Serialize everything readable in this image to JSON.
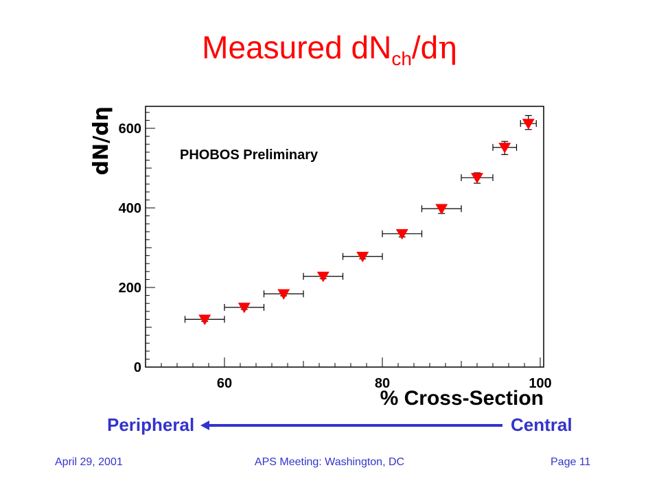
{
  "slide": {
    "title_main": "Measured dN",
    "title_sub": "ch",
    "title_tail": "/d",
    "title_greek": "η",
    "footer_date": "April 29, 2001",
    "footer_meeting": "APS Meeting: Washington, DC",
    "footer_page": "Page 11",
    "direction_left": "Peripheral",
    "direction_right": "Central",
    "colors": {
      "title": "#ff0000",
      "accent": "#3333cc",
      "marker": "#ff0000"
    }
  },
  "chart_data": {
    "type": "scatter",
    "annotation": "PHOBOS Preliminary",
    "xlabel": "% Cross-Section",
    "ylabel": "dN/dη",
    "xlim": [
      50,
      101
    ],
    "ylim": [
      0,
      650
    ],
    "xticks": [
      60,
      80,
      100
    ],
    "yticks": [
      0,
      200,
      400,
      600
    ],
    "grid": false,
    "marker": "down-triangle",
    "series": [
      {
        "points": [
          {
            "x": 57.5,
            "y": 120,
            "x_err": 2.5,
            "y_err_low": 5,
            "y_err_high": 5
          },
          {
            "x": 62.5,
            "y": 150,
            "x_err": 2.5,
            "y_err_low": 5,
            "y_err_high": 5
          },
          {
            "x": 67.5,
            "y": 184,
            "x_err": 2.5,
            "y_err_low": 5,
            "y_err_high": 5
          },
          {
            "x": 72.5,
            "y": 228,
            "x_err": 2.5,
            "y_err_low": 6,
            "y_err_high": 6
          },
          {
            "x": 77.5,
            "y": 278,
            "x_err": 2.5,
            "y_err_low": 6,
            "y_err_high": 6
          },
          {
            "x": 82.5,
            "y": 335,
            "x_err": 2.5,
            "y_err_low": 8,
            "y_err_high": 8
          },
          {
            "x": 87.5,
            "y": 398,
            "x_err": 2.5,
            "y_err_low": 12,
            "y_err_high": 8
          },
          {
            "x": 92.0,
            "y": 476,
            "x_err": 2.0,
            "y_err_low": 14,
            "y_err_high": 12
          },
          {
            "x": 95.5,
            "y": 552,
            "x_err": 1.5,
            "y_err_low": 18,
            "y_err_high": 15
          },
          {
            "x": 98.5,
            "y": 612,
            "x_err": 1.0,
            "y_err_low": 15,
            "y_err_high": 20
          }
        ]
      }
    ]
  }
}
